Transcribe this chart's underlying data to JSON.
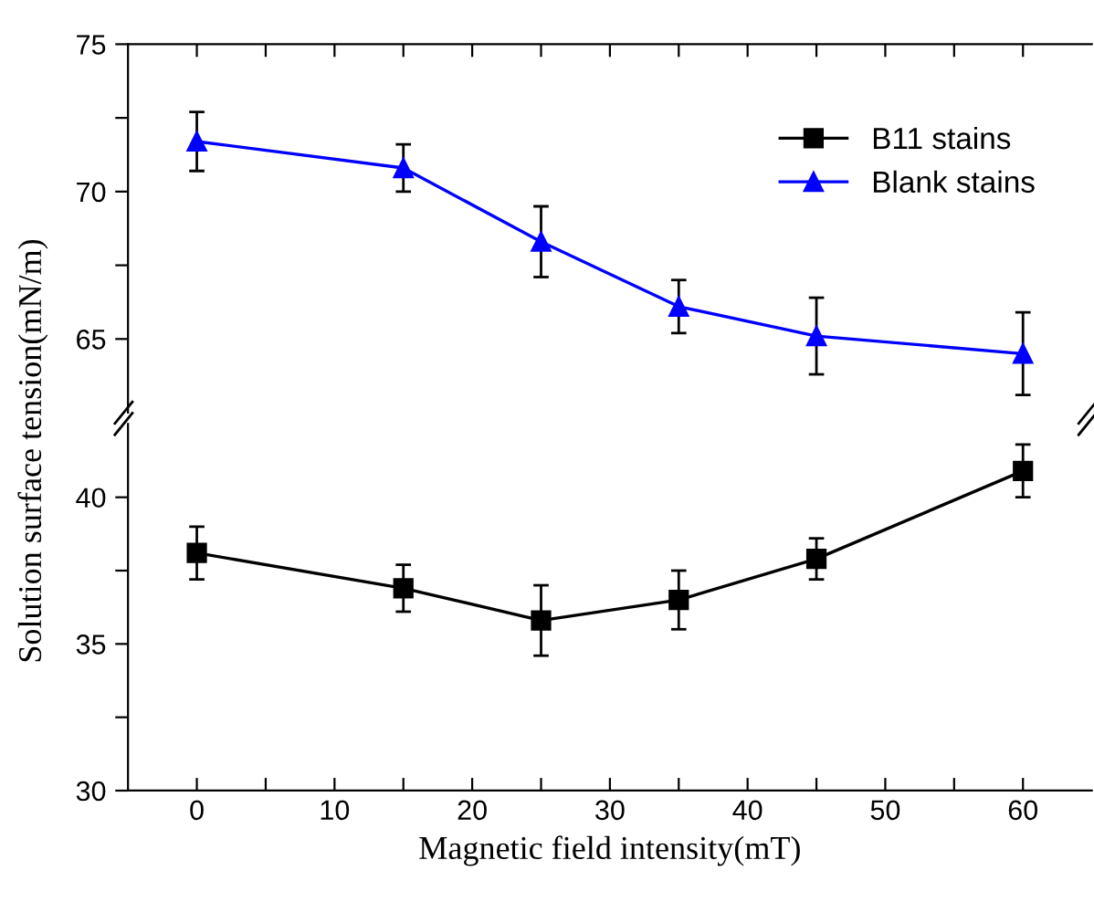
{
  "chart_data": [
    {
      "type": "line",
      "ylabel": "Solution surface tension(mN/m)",
      "xlim": [
        -5,
        65
      ],
      "xticks": [
        {
          "value": 0,
          "label": null
        },
        {
          "value": 5,
          "label": null
        },
        {
          "value": 10,
          "label": null
        },
        {
          "value": 15,
          "label": null
        },
        {
          "value": 20,
          "label": null
        },
        {
          "value": 25,
          "label": null
        },
        {
          "value": 30,
          "label": null
        },
        {
          "value": 35,
          "label": null
        },
        {
          "value": 40,
          "label": null
        },
        {
          "value": 45,
          "label": null
        },
        {
          "value": 50,
          "label": null
        },
        {
          "value": 55,
          "label": null
        },
        {
          "value": 60,
          "label": null
        }
      ],
      "ylim": [
        62.5,
        75
      ],
      "yticks": [
        65,
        {
          "value": 67.5,
          "label": null
        },
        70,
        {
          "value": 72.5,
          "label": null
        },
        75
      ],
      "tick_labels": "y",
      "legend": "top right",
      "grid": false,
      "series": [
        {
          "name": "Blank stains",
          "color": "#0000ff",
          "marker": "triangle",
          "x": [
            0,
            15,
            25,
            35,
            45,
            60
          ],
          "values": [
            71.7,
            70.8,
            68.3,
            66.1,
            65.1,
            64.5
          ],
          "errors": [
            1.0,
            0.8,
            1.2,
            0.9,
            1.3,
            1.4
          ]
        }
      ]
    },
    {
      "type": "line",
      "xlabel": "Magnetic field intensity(mT)",
      "xlim": [
        -5,
        65
      ],
      "xticks": [
        0,
        {
          "value": 5,
          "label": null
        },
        10,
        {
          "value": 15,
          "label": null
        },
        20,
        {
          "value": 25,
          "label": null
        },
        30,
        {
          "value": 35,
          "label": null
        },
        40,
        {
          "value": 45,
          "label": null
        },
        50,
        {
          "value": 55,
          "label": null
        },
        60
      ],
      "ylim": [
        30,
        42.5
      ],
      "yticks": [
        30,
        {
          "value": 32.5,
          "label": null
        },
        35,
        {
          "value": 37.5,
          "label": null
        },
        40
      ],
      "grid": false,
      "series": [
        {
          "name": "B11 stains",
          "color": "#000000",
          "marker": "square",
          "x": [
            0,
            15,
            25,
            35,
            45,
            60
          ],
          "values": [
            38.1,
            36.9,
            35.8,
            36.5,
            37.9,
            40.9
          ],
          "errors": [
            0.9,
            0.8,
            1.2,
            1.0,
            0.7,
            0.9
          ]
        }
      ]
    }
  ]
}
